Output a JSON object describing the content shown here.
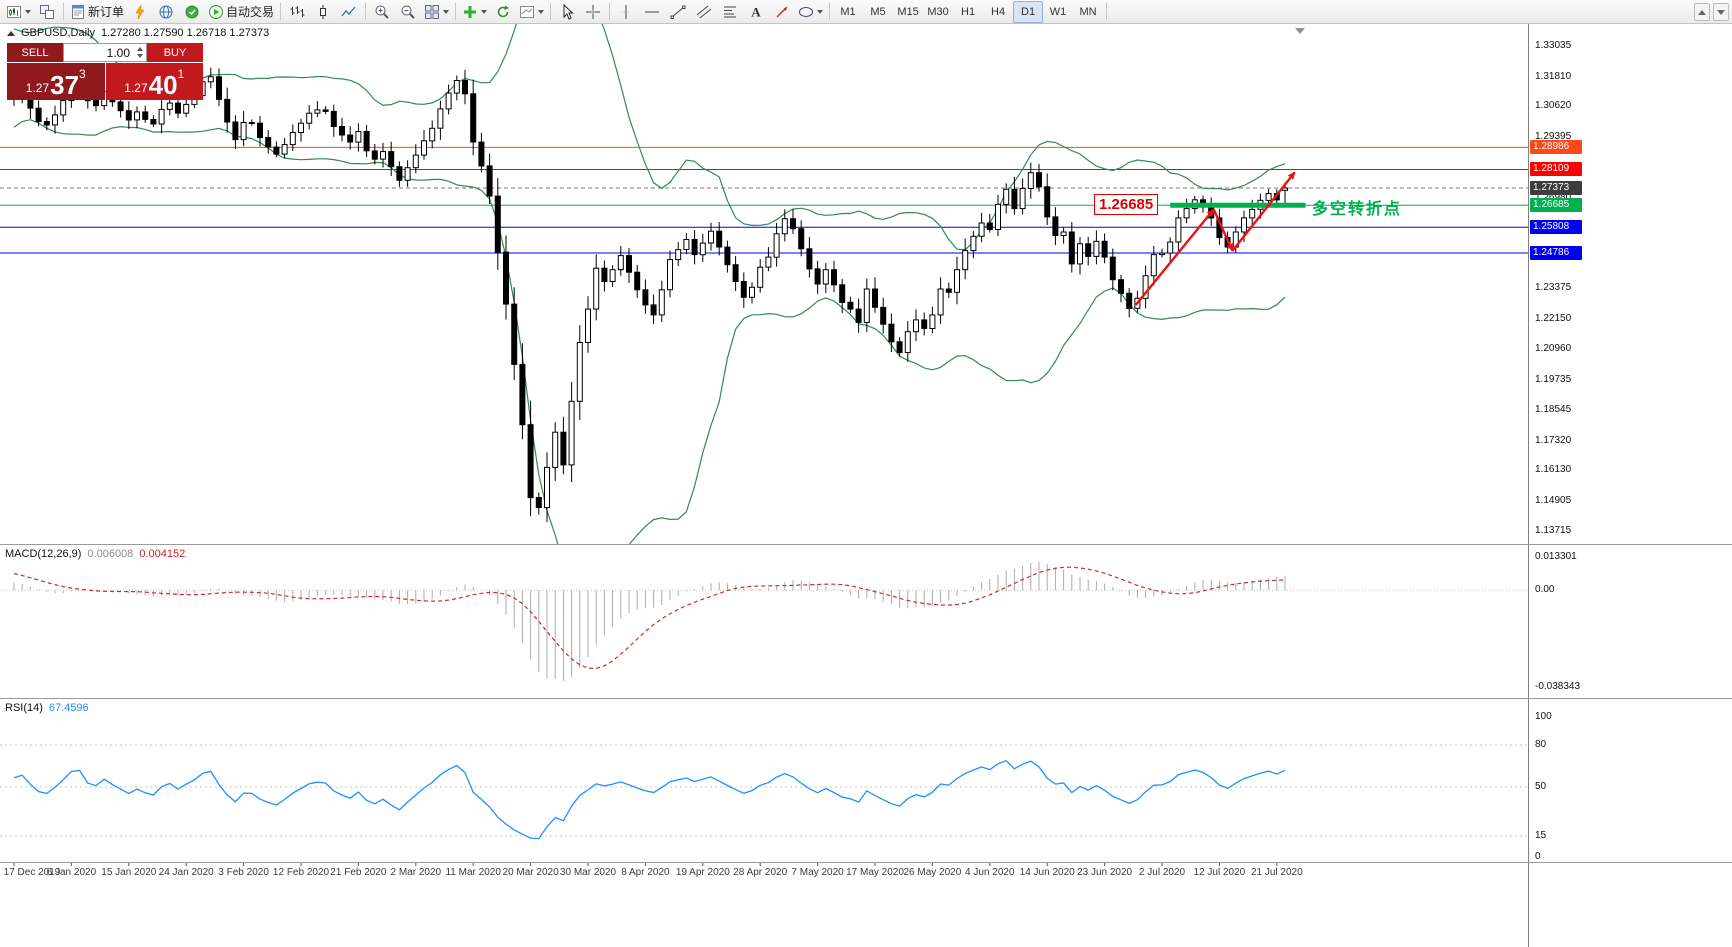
{
  "toolbar": {
    "items": [
      {
        "name": "new-chart-button",
        "icon": "chart",
        "caret": true
      },
      {
        "name": "profiles-button",
        "icon": "tile"
      },
      {
        "sep": true
      },
      {
        "name": "new-order-button",
        "icon": "order",
        "label": "新订单"
      },
      {
        "name": "metaeditor-button",
        "icon": "lightning"
      },
      {
        "name": "community-button",
        "icon": "globe"
      },
      {
        "name": "market-button",
        "icon": "badge"
      },
      {
        "name": "autotrading-button",
        "icon": "play",
        "label": "自动交易"
      },
      {
        "sep": true
      },
      {
        "name": "bar-chart-button",
        "icon": "bars"
      },
      {
        "name": "candlestick-chart-button",
        "icon": "candle"
      },
      {
        "name": "line-chart-button",
        "icon": "line"
      },
      {
        "sep": true
      },
      {
        "name": "zoom-in-button",
        "icon": "zoomin"
      },
      {
        "name": "zoom-out-button",
        "icon": "zoomout"
      },
      {
        "name": "tile-windows-button",
        "icon": "grid",
        "caret": true
      },
      {
        "sep": true
      },
      {
        "name": "indicators-button",
        "icon": "plus",
        "caret": true
      },
      {
        "name": "auto-scroll-button",
        "icon": "refresh"
      },
      {
        "name": "templates-button",
        "icon": "template",
        "caret": true
      },
      {
        "sep": true
      },
      {
        "name": "cursor-button",
        "icon": "cursor"
      },
      {
        "name": "crosshair-button",
        "icon": "cross"
      },
      {
        "sep": true
      },
      {
        "name": "vline-button",
        "icon": "vline"
      },
      {
        "name": "hline-button",
        "icon": "hline"
      },
      {
        "name": "trendline-button",
        "icon": "tline"
      },
      {
        "name": "channel-button",
        "icon": "channel"
      },
      {
        "name": "fibonacci-button",
        "icon": "fibo"
      },
      {
        "name": "text-button",
        "icon": "text"
      },
      {
        "name": "arrows-button",
        "icon": "arrowt"
      },
      {
        "name": "shapes-button",
        "icon": "shapes",
        "caret": true
      },
      {
        "sep": true
      },
      {
        "name": "tf-m1-button",
        "label": "M1",
        "tf": true
      },
      {
        "name": "tf-m5-button",
        "label": "M5",
        "tf": true
      },
      {
        "name": "tf-m15-button",
        "label": "M15",
        "tf": true
      },
      {
        "name": "tf-m30-button",
        "label": "M30",
        "tf": true
      },
      {
        "name": "tf-h1-button",
        "label": "H1",
        "tf": true
      },
      {
        "name": "tf-h4-button",
        "label": "H4",
        "tf": true
      },
      {
        "name": "tf-d1-button",
        "label": "D1",
        "tf": true,
        "active": true
      },
      {
        "name": "tf-w1-button",
        "label": "W1",
        "tf": true
      },
      {
        "name": "tf-mn-button",
        "label": "MN",
        "tf": true
      },
      {
        "sep": true
      }
    ],
    "overflow": [
      {
        "name": "toolbar-up-button",
        "dir": "up"
      },
      {
        "name": "toolbar-down-button",
        "dir": "down"
      }
    ]
  },
  "quote": {
    "symbol_period": "GBPUSD,Daily",
    "ohlc": "1.27280 1.27590 1.26718 1.27373"
  },
  "trade": {
    "sell_label": "SELL",
    "buy_label": "BUY",
    "volume": "1.00",
    "bid": {
      "small": "1.27",
      "big": "37",
      "sup": "3"
    },
    "ask": {
      "small": "1.27",
      "big": "40",
      "sup": "1"
    }
  },
  "chart_data": {
    "type": "candlestick",
    "symbol": "GBPUSD",
    "period": "Daily",
    "ylim": [
      1.132,
      1.339
    ],
    "pre_closes": [
      1.2952,
      1.2988,
      1.3022,
      1.3065,
      1.3095,
      1.313,
      1.3168,
      1.3205,
      1.3246,
      1.3285,
      1.332,
      1.3348,
      1.331,
      1.3268,
      1.3225,
      1.3185,
      1.3148,
      1.3112,
      1.315,
      1.313
    ],
    "closes": [
      1.3092,
      1.3112,
      1.3055,
      1.3002,
      1.2988,
      1.3028,
      1.3085,
      1.316,
      1.317,
      1.3085,
      1.3065,
      1.312,
      1.308,
      1.3045,
      1.3008,
      1.304,
      1.301,
      1.2992,
      1.305,
      1.3075,
      1.3035,
      1.307,
      1.3105,
      1.316,
      1.318,
      1.309,
      1.3,
      1.293,
      1.2998,
      1.2995,
      1.2938,
      1.29,
      1.2872,
      1.291,
      1.2958,
      1.2995,
      1.3035,
      1.3048,
      1.3042,
      1.2982,
      1.2948,
      1.292,
      1.2962,
      1.2885,
      1.2852,
      1.2882,
      1.2822,
      1.2768,
      1.2818,
      1.2868,
      1.2925,
      1.2975,
      1.3052,
      1.3115,
      1.3165,
      1.3112,
      1.292,
      1.2825,
      1.2705,
      1.2482,
      1.2275,
      1.2035,
      1.1795,
      1.1505,
      1.1465,
      1.1625,
      1.1765,
      1.1635,
      1.1888,
      1.2122,
      1.2255,
      1.2418,
      1.2365,
      1.2412,
      1.2468,
      1.2402,
      1.2332,
      1.2272,
      1.2232,
      1.2332,
      1.2452,
      1.2492,
      1.2532,
      1.2472,
      1.2518,
      1.2565,
      1.2502,
      1.2432,
      1.2365,
      1.2302,
      1.2342,
      1.2422,
      1.2462,
      1.2555,
      1.2615,
      1.2575,
      1.2495,
      1.2415,
      1.2355,
      1.2412,
      1.2352,
      1.2282,
      1.2255,
      1.2202,
      1.2335,
      1.2262,
      1.2195,
      1.2125,
      1.2082,
      1.2165,
      1.2212,
      1.2178,
      1.2232,
      1.2335,
      1.2322,
      1.2412,
      1.2488,
      1.2545,
      1.2598,
      1.2572,
      1.2672,
      1.2732,
      1.2655,
      1.2735,
      1.2798,
      1.2742,
      1.2622,
      1.2548,
      1.2562,
      1.2435,
      1.2515,
      1.2465,
      1.2525,
      1.2462,
      1.2372,
      1.2318,
      1.2258,
      1.2298,
      1.2388,
      1.2472,
      1.2478,
      1.2522,
      1.2618,
      1.2655,
      1.269,
      1.2668,
      1.2618,
      1.254,
      1.2502,
      1.2562,
      1.2618,
      1.2652,
      1.2688,
      1.2715,
      1.269,
      1.27373
    ],
    "last_candle": {
      "open": 1.2728,
      "high": 1.2759,
      "low": 1.26718,
      "close": 1.27373
    },
    "bollinger": {
      "period": 20,
      "deviation": 2,
      "color": "#2e8b57"
    },
    "hlines": [
      {
        "name": "resistance-line-1",
        "price": 1.28986,
        "color": "#ff4819",
        "label": "1.28986",
        "tag_bg": "#ff4819"
      },
      {
        "name": "resistance-line-2",
        "price": 1.28109,
        "color": "#ff0000",
        "label": "1.28109",
        "tag_bg": "#ff0000"
      },
      {
        "name": "current-price-line",
        "price": 1.27373,
        "color": "#777777",
        "label": "1.27373",
        "tag_bg": "#3d3d3d",
        "dash": true
      },
      {
        "name": "pivot-line",
        "price": 1.26685,
        "color": "#00b050",
        "label": "1.26685",
        "tag_bg": "#00b050"
      },
      {
        "name": "support-line-1",
        "price": 1.25808,
        "color": "#0000ee",
        "label": "1.25808",
        "tag_bg": "#0000ee"
      },
      {
        "name": "support-line-2",
        "price": 1.24786,
        "color": "#0000ee",
        "label": "1.24786",
        "tag_bg": "#0000ee"
      }
    ],
    "price_axis_labels": [
      "1.33035",
      "1.31810",
      "1.30620",
      "1.29395",
      "1.26980",
      "1.24585",
      "1.23375",
      "1.22150",
      "1.20960",
      "1.19735",
      "1.18545",
      "1.17320",
      "1.16130",
      "1.14905",
      "1.13715"
    ],
    "date_axis": {
      "step": 7,
      "labels": [
        "17 Dec 2019",
        "6 Jan 2020",
        "15 Jan 2020",
        "24 Jan 2020",
        "3 Feb 2020",
        "12 Feb 2020",
        "21 Feb 2020",
        "2 Mar 2020",
        "11 Mar 2020",
        "20 Mar 2020",
        "30 Mar 2020",
        "8 Apr 2020",
        "19 Apr 2020",
        "28 Apr 2020",
        "7 May 2020",
        "17 May 2020",
        "26 May 2020",
        "4 Jun 2020",
        "14 Jun 2020",
        "23 Jun 2020",
        "2 Jul 2020",
        "12 Jul 2020",
        "21 Jul 2020"
      ]
    },
    "macd": {
      "label": "MACD(12,26,9)",
      "value_main": "0.006008",
      "value_signal": "0.004152",
      "scale_labels": [
        "0.013301",
        "0.00",
        "-0.038343"
      ],
      "ylim": [
        -0.04,
        0.014
      ],
      "histogram_color": "#ababab",
      "signal_color": "#d42a2a"
    },
    "rsi": {
      "label": "RSI(14)",
      "value": "67.4596",
      "scale_labels": [
        "100",
        "80",
        "50",
        "15",
        "0"
      ],
      "levels": [
        80,
        50,
        15
      ],
      "color": "#1e90ff"
    },
    "annotations": {
      "price_label": "1.26685",
      "turning_text": "多空转折点",
      "accent_green": "#00b050",
      "annotation_red": "#e00000",
      "thick_line": {
        "price": 1.26685,
        "x1_bar": 141,
        "x2_bar": 157.5,
        "color": "#00b050"
      },
      "arrows": {
        "color": "#ee1111",
        "segments": [
          {
            "b1": 136.8,
            "p1": 1.2272,
            "b2": 146.3,
            "p2": 1.2652
          },
          {
            "b1": 146.3,
            "p1": 1.2652,
            "b2": 148.6,
            "p2": 1.2487
          },
          {
            "b1": 148.6,
            "p1": 1.2487,
            "b2": 156.2,
            "p2": 1.28
          }
        ]
      }
    }
  }
}
